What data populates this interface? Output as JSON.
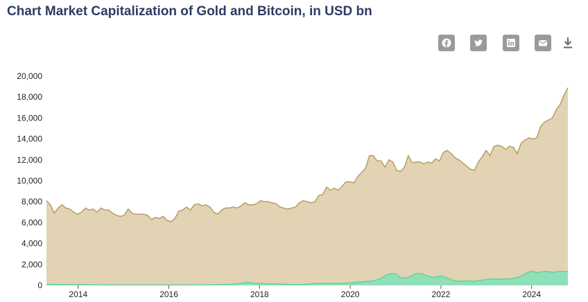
{
  "title": "Chart Market Capitalization of Gold and Bitcoin, in USD bn",
  "share": [
    "facebook-icon",
    "twitter-icon",
    "linkedin-icon",
    "email-icon",
    "download-icon"
  ],
  "colors": {
    "gold_fill": "#e1d3b3",
    "gold_line": "#b89d63",
    "bitcoin_fill": "#8fe0b8",
    "bitcoin_line": "#5fd39d",
    "share_bg": "#9a9a9a",
    "title": "#2f3b63"
  },
  "chart_data": {
    "type": "area",
    "x_start": 2013.3,
    "x_end": 2024.8,
    "ylim": [
      0,
      20000
    ],
    "yticks": [
      "0",
      "2,000",
      "4,000",
      "6,000",
      "8,000",
      "10,000",
      "12,000",
      "14,000",
      "16,000",
      "18,000",
      "20,000"
    ],
    "xticks": [
      "2014",
      "2016",
      "2018",
      "2020",
      "2022",
      "2024"
    ],
    "grid": false,
    "legend": "none",
    "series": [
      {
        "values": [
          8100,
          7700,
          6900,
          7400,
          7700,
          7400,
          7300,
          7000,
          6800,
          7000,
          7400,
          7200,
          7300,
          7000,
          7400,
          7200,
          7200,
          6900,
          6700,
          6600,
          6700,
          7300,
          6900,
          6800,
          6800,
          6800,
          6700,
          6300,
          6500,
          6400,
          6600,
          6200,
          6100,
          6400,
          7100,
          7200,
          7500,
          7200,
          7700,
          7800,
          7600,
          7700,
          7500,
          7000,
          6800,
          7200,
          7400,
          7400,
          7500,
          7400,
          7600,
          7900,
          7700,
          7700,
          7800,
          8100,
          8000,
          8000,
          7900,
          7800,
          7500,
          7400,
          7300,
          7400,
          7500,
          7900,
          8100,
          8000,
          7900,
          8000,
          8600,
          8700,
          9400,
          9100,
          9300,
          9100,
          9500,
          9900,
          9900,
          9800,
          10400,
          10800,
          11200,
          12400,
          12400,
          11900,
          11900,
          11300,
          12000,
          11800,
          11000,
          10900,
          11300,
          12400,
          11700,
          11800,
          11800,
          11600,
          11800,
          11700,
          12100,
          11900,
          12700,
          12900,
          12600,
          12200,
          12000,
          11700,
          11400,
          11100,
          11000,
          11800,
          12300,
          12900,
          12400,
          13300,
          13400,
          13300,
          13000,
          13300,
          13200,
          12600,
          13600,
          13900,
          14100,
          14000,
          14100,
          15200,
          15600,
          15800,
          16000,
          16800,
          17300,
          18200,
          18900
        ]
      },
      {
        "values": [
          80,
          90,
          100,
          90,
          80,
          70,
          80,
          70,
          60,
          70,
          70,
          60,
          60,
          50,
          50,
          50,
          50,
          40,
          40,
          40,
          40,
          40,
          40,
          40,
          40,
          40,
          40,
          40,
          40,
          40,
          40,
          40,
          40,
          40,
          40,
          40,
          40,
          40,
          40,
          50,
          50,
          50,
          50,
          50,
          50,
          60,
          70,
          80,
          90,
          100,
          120,
          150,
          200,
          250,
          300,
          250,
          200,
          180,
          170,
          160,
          150,
          140,
          130,
          110,
          100,
          90,
          80,
          70,
          80,
          90,
          110,
          150,
          180,
          200,
          190,
          180,
          170,
          170,
          180,
          190,
          200,
          220,
          250,
          280,
          320,
          360,
          380,
          400,
          450,
          550,
          700,
          950,
          1100,
          1150,
          1050,
          750,
          700,
          750,
          900,
          1100,
          1150,
          1100,
          950,
          800,
          750,
          850,
          900,
          800,
          650,
          500,
          400,
          380,
          420,
          450,
          400,
          400,
          450,
          500,
          550,
          600,
          620,
          600,
          580,
          600,
          620,
          650,
          700,
          800,
          1000,
          1200,
          1350,
          1300,
          1200,
          1300,
          1350,
          1300,
          1250,
          1300,
          1350,
          1300,
          1350
        ]
      }
    ]
  }
}
